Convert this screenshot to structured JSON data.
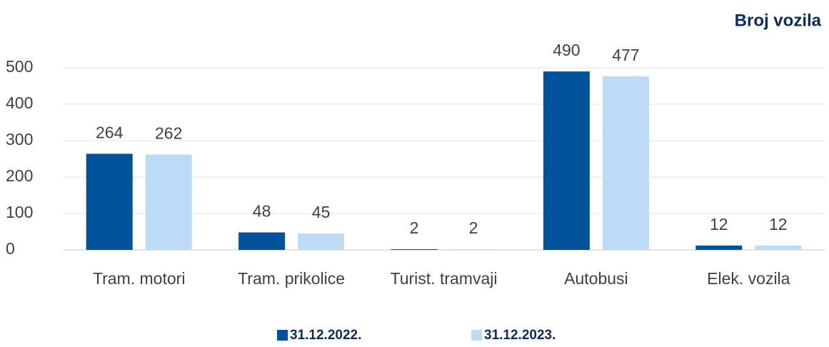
{
  "chart_data": {
    "type": "bar",
    "title": "Broj vozila",
    "categories": [
      "Tram. motori",
      "Tram. prikolice",
      "Turist. tramvaji",
      "Autobusi",
      "Elek. vozila"
    ],
    "series": [
      {
        "name": "31.12.2022.",
        "color": "#00529b",
        "values": [
          264,
          48,
          2,
          490,
          12
        ]
      },
      {
        "name": "31.12.2023.",
        "color": "#bddbf7",
        "values": [
          262,
          45,
          2,
          477,
          12
        ]
      }
    ],
    "ylim": [
      0,
      500
    ],
    "yticks": [
      0,
      100,
      200,
      300,
      400,
      500
    ],
    "grid": true,
    "legend": "bottom"
  }
}
